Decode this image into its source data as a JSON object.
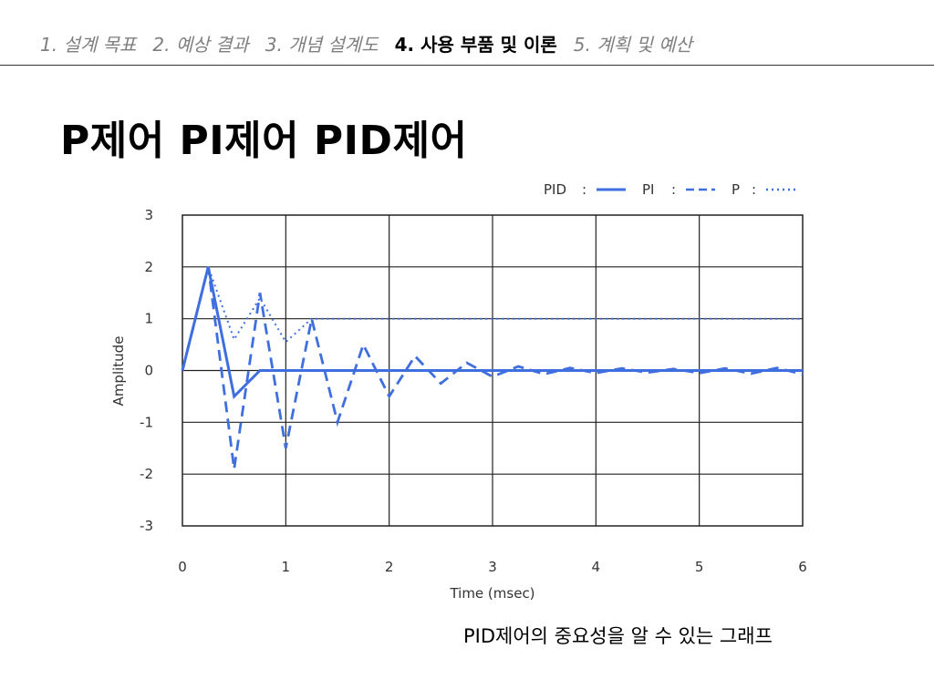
{
  "nav": {
    "items": [
      {
        "label": "1. 설계 목표",
        "active": false
      },
      {
        "label": "2. 예상 결과",
        "active": false
      },
      {
        "label": "3. 개념 설계도",
        "active": false
      },
      {
        "label": "4. 사용 부품 및 이론",
        "active": true
      },
      {
        "label": "5. 계획 및 예산",
        "active": false
      }
    ]
  },
  "slide": {
    "title": "P제어 PI제어 PID제어",
    "caption": "PID제어의 중요성을 알 수 있는 그래프"
  },
  "chart_data": {
    "type": "line",
    "xlabel": "Time (msec)",
    "ylabel": "Amplitude",
    "xlim": [
      0,
      6
    ],
    "ylim": [
      -3,
      3
    ],
    "xticks": [
      "0",
      "1",
      "2",
      "3",
      "4",
      "5",
      "6"
    ],
    "yticks": [
      "3",
      "2",
      "1",
      "0",
      "-1",
      "-2",
      "-3"
    ],
    "grid": true,
    "legend_position": "top-right",
    "line_color": "#3f6fdf",
    "series": [
      {
        "name": "PID",
        "style": "solid",
        "x": [
          0,
          0.25,
          0.5,
          0.75,
          6
        ],
        "y": [
          0,
          2,
          -0.5,
          0,
          0
        ]
      },
      {
        "name": "PI",
        "style": "dashed",
        "x": [
          0,
          0.25,
          0.5,
          0.75,
          1.0,
          1.25,
          1.5,
          1.75,
          2.0,
          2.25,
          2.5,
          2.75,
          3.0,
          3.25,
          3.5,
          3.75,
          4.0,
          4.25,
          4.5,
          4.75,
          5.0,
          5.25,
          5.5,
          5.75,
          6.0
        ],
        "y": [
          0,
          2,
          -1.9,
          1.5,
          -1.5,
          1.0,
          -1.0,
          0.5,
          -0.5,
          0.28,
          -0.25,
          0.15,
          -0.12,
          0.08,
          -0.07,
          0.05,
          -0.05,
          0.04,
          -0.04,
          0.03,
          -0.05,
          0.04,
          -0.06,
          0.05,
          -0.07
        ]
      },
      {
        "name": "P",
        "style": "dotted",
        "x": [
          0,
          0.25,
          0.5,
          0.75,
          1.0,
          1.25,
          6.0
        ],
        "y": [
          0,
          2,
          0.6,
          1.4,
          0.55,
          1.0,
          1.0
        ]
      }
    ]
  }
}
